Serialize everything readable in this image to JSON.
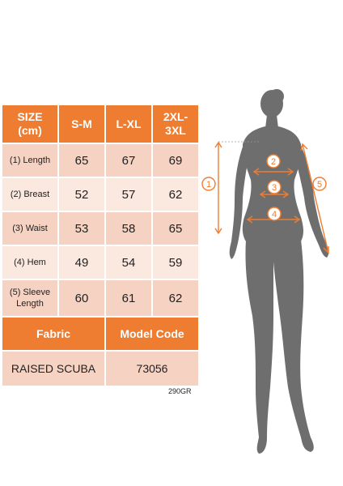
{
  "table": {
    "header": {
      "label_line1": "SIZE",
      "label_line2": "(cm)",
      "sizes": [
        "S-M",
        "L-XL",
        "2XL-",
        "3XL"
      ]
    },
    "rows": [
      {
        "label": "(1) Length",
        "values": [
          "65",
          "67",
          "69"
        ]
      },
      {
        "label": "(2) Breast",
        "values": [
          "52",
          "57",
          "62"
        ]
      },
      {
        "label": "(3) Waist",
        "values": [
          "53",
          "58",
          "65"
        ]
      },
      {
        "label": "(4) Hem",
        "values": [
          "49",
          "54",
          "59"
        ]
      },
      {
        "label_line1": "(5) Sleeve",
        "label_line2": "Length",
        "values": [
          "60",
          "61",
          "62"
        ]
      }
    ]
  },
  "fabric": {
    "fabric_header": "Fabric",
    "code_header": "Model Code",
    "fabric_value": "RAISED SCUBA",
    "code_value": "73056"
  },
  "weight": "290GR",
  "figure": {
    "markers": [
      "1",
      "2",
      "3",
      "4",
      "5"
    ],
    "colors": {
      "accent": "#ee7d31",
      "silhouette": "#6e6e6e"
    }
  }
}
